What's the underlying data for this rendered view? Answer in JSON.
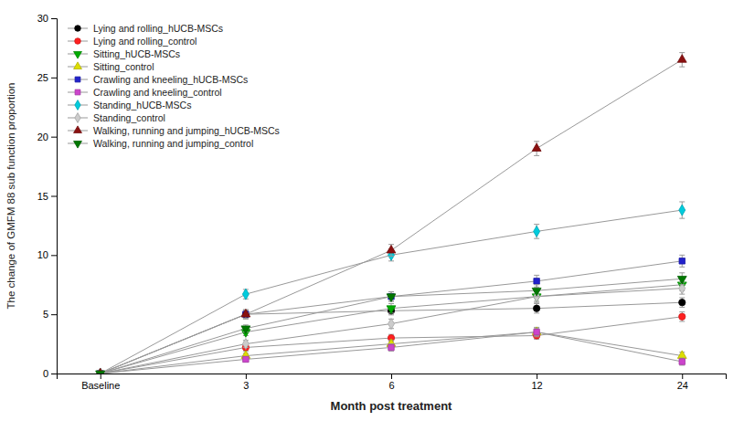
{
  "chart_data": {
    "type": "line",
    "xlabel": "Month post treatment",
    "ylabel": "The change of GMFM 88 sub function proportion",
    "categories": [
      "Baseline",
      "3",
      "6",
      "12",
      "24"
    ],
    "ylim": [
      0,
      30
    ],
    "yticks": [
      0,
      5,
      10,
      15,
      20,
      25,
      30
    ],
    "grid": false,
    "legend": "upper left",
    "series": [
      {
        "name": "Lying and rolling_hUCB-MSCs",
        "color": "#000000",
        "marker": "circle",
        "values": [
          0,
          5.0,
          5.3,
          5.5,
          6.0
        ],
        "errors": [
          0,
          0.35,
          0.35,
          0.4,
          0.4
        ]
      },
      {
        "name": "Lying and rolling_control",
        "color": "#ff2020",
        "marker": "circle",
        "values": [
          0,
          2.2,
          3.0,
          3.2,
          4.8
        ],
        "errors": [
          0,
          0.3,
          0.3,
          0.3,
          0.4
        ]
      },
      {
        "name": "Sitting_hUCB-MSCs",
        "color": "#00aa00",
        "marker": "triangle-down",
        "values": [
          0,
          3.5,
          5.5,
          6.5,
          7.5
        ],
        "errors": [
          0,
          0.3,
          0.4,
          0.4,
          0.5
        ]
      },
      {
        "name": "Sitting_control",
        "color": "#dddd00",
        "marker": "triangle-up",
        "values": [
          0,
          1.5,
          2.5,
          3.5,
          1.5
        ],
        "errors": [
          0,
          0.2,
          0.3,
          0.4,
          0.3
        ]
      },
      {
        "name": "Crawling and kneeling_hUCB-MSCs",
        "color": "#2222cc",
        "marker": "square",
        "values": [
          0,
          5.0,
          6.5,
          7.8,
          9.5
        ],
        "errors": [
          0,
          0.3,
          0.4,
          0.5,
          0.5
        ]
      },
      {
        "name": "Crawling and kneeling_control",
        "color": "#cc44cc",
        "marker": "square",
        "values": [
          0,
          1.2,
          2.2,
          3.5,
          1.0
        ],
        "errors": [
          0,
          0.2,
          0.3,
          0.3,
          0.3
        ]
      },
      {
        "name": "Standing_hUCB-MSCs",
        "color": "#00ccdd",
        "marker": "diamond",
        "values": [
          0,
          6.7,
          10.0,
          12.0,
          13.8
        ],
        "errors": [
          0,
          0.4,
          0.5,
          0.6,
          0.7
        ]
      },
      {
        "name": "Standing_control",
        "color": "#cccccc",
        "marker": "diamond",
        "values": [
          0,
          2.5,
          4.2,
          6.5,
          7.2
        ],
        "errors": [
          0,
          0.3,
          0.4,
          0.5,
          0.5
        ]
      },
      {
        "name": "Walking, running and jumping_hUCB-MSCs",
        "color": "#8b1010",
        "marker": "triangle-up",
        "values": [
          0,
          5.0,
          10.4,
          19.0,
          26.5
        ],
        "errors": [
          0,
          0.4,
          0.5,
          0.6,
          0.6
        ]
      },
      {
        "name": "Walking, running and jumping_control",
        "color": "#007700",
        "marker": "triangle-down",
        "values": [
          0,
          3.8,
          6.5,
          7.0,
          8.0
        ],
        "errors": [
          0,
          0.3,
          0.4,
          0.5,
          0.5
        ]
      }
    ]
  }
}
